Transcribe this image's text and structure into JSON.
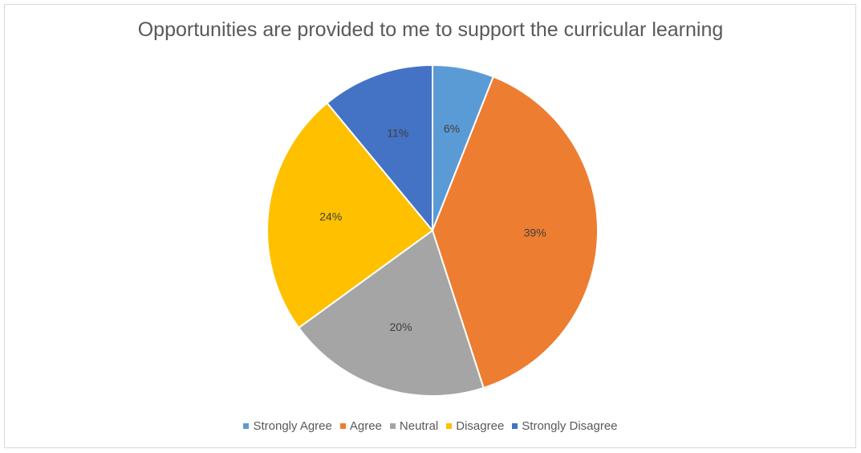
{
  "chart_data": {
    "type": "pie",
    "title": "Opportunities are provided to me to support the curricular learning",
    "categories": [
      "Strongly Agree",
      "Agree",
      "Neutral",
      "Disagree",
      "Strongly Disagree"
    ],
    "values": [
      6,
      39,
      20,
      24,
      11
    ],
    "labels": [
      "6%",
      "39%",
      "20%",
      "24%",
      "11%"
    ],
    "colors": [
      "#5b9bd5",
      "#ed7d31",
      "#a5a5a5",
      "#ffc000",
      "#4472c4"
    ],
    "legend_position": "bottom",
    "start_angle": "top",
    "direction": "clockwise"
  }
}
